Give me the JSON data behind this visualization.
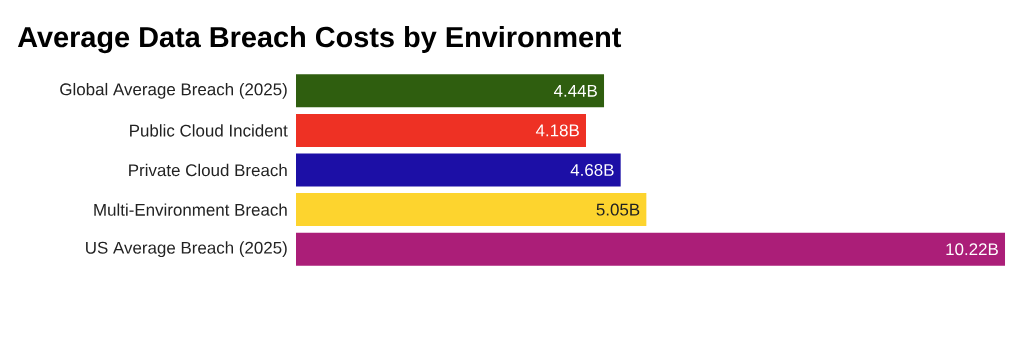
{
  "chart_data": {
    "type": "bar",
    "orientation": "horizontal",
    "title": "Average Data Breach Costs by Environment",
    "categories": [
      "Global Average Breach (2025)",
      "Public Cloud Incident",
      "Private Cloud Breach",
      "Multi-Environment Breach",
      "US Average Breach (2025)"
    ],
    "values": [
      4.44,
      4.18,
      4.68,
      5.05,
      10.22
    ],
    "value_labels": [
      "4.44B",
      "4.18B",
      "4.68B",
      "5.05B",
      "10.22B"
    ],
    "colors": [
      "#2f5e0f",
      "#ee3124",
      "#1c0fa6",
      "#fdd42e",
      "#ab1e78"
    ],
    "tick_labels": "y"
  }
}
